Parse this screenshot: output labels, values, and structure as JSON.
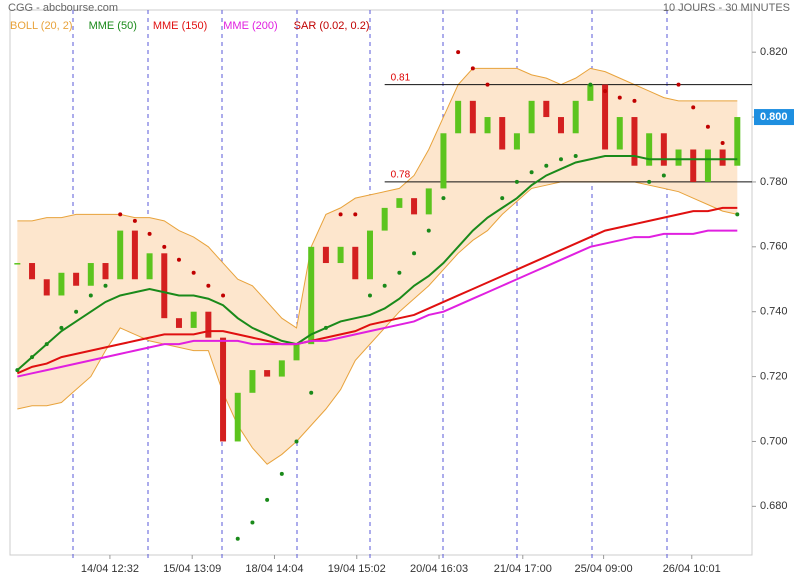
{
  "chart_data": {
    "type": "ohlc",
    "title": "CGG - abcbourse.com",
    "subtitle": "10 JOURS - 30 MINUTES",
    "x": [
      0,
      1,
      2,
      3,
      4,
      5,
      6,
      7,
      8,
      9,
      10,
      11,
      12,
      13,
      14,
      15,
      16,
      17,
      18,
      19,
      20,
      21,
      22,
      23,
      24,
      25,
      26,
      27,
      28,
      29,
      30,
      31,
      32,
      33,
      34,
      35,
      36,
      37,
      38,
      39,
      40,
      41,
      42,
      43,
      44,
      45,
      46,
      47,
      48,
      49
    ],
    "xlim": [
      -0.5,
      50
    ],
    "xticks": [
      {
        "value": 6.3,
        "label": "14/04 12:32"
      },
      {
        "value": 11.9,
        "label": "15/04 13:09"
      },
      {
        "value": 17.5,
        "label": "18/04 14:04"
      },
      {
        "value": 23.1,
        "label": "19/04 15:02"
      },
      {
        "value": 28.7,
        "label": "20/04 16:03"
      },
      {
        "value": 34.4,
        "label": "21/04 17:00"
      },
      {
        "value": 39.9,
        "label": "25/04 09:00"
      },
      {
        "value": 45.9,
        "label": "26/04 10:01"
      }
    ],
    "ylim": [
      0.665,
      0.833
    ],
    "yticks": [
      {
        "value": 0.68,
        "label": "0.680"
      },
      {
        "value": 0.7,
        "label": "0.700"
      },
      {
        "value": 0.72,
        "label": "0.720"
      },
      {
        "value": 0.74,
        "label": "0.740"
      },
      {
        "value": 0.76,
        "label": "0.760"
      },
      {
        "value": 0.78,
        "label": "0.780"
      },
      {
        "value": 0.8,
        "label": "0.800"
      },
      {
        "value": 0.82,
        "label": "0.820"
      }
    ],
    "up_color": "#5cc41e",
    "down_color": "#d42020",
    "close": [
      0.755,
      0.75,
      0.745,
      0.752,
      0.748,
      0.755,
      0.75,
      0.765,
      0.75,
      0.758,
      0.738,
      0.735,
      0.74,
      0.732,
      0.7,
      0.715,
      0.722,
      0.72,
      0.725,
      0.73,
      0.76,
      0.755,
      0.76,
      0.75,
      0.765,
      0.772,
      0.775,
      0.77,
      0.778,
      0.795,
      0.805,
      0.795,
      0.8,
      0.79,
      0.795,
      0.805,
      0.8,
      0.795,
      0.805,
      0.81,
      0.79,
      0.8,
      0.785,
      0.795,
      0.785,
      0.79,
      0.78,
      0.79,
      0.785,
      0.8
    ],
    "series": [
      {
        "name": "BOLL (20, 2)",
        "color": "#e8a33c",
        "kind": "band",
        "upper": [
          0.768,
          0.768,
          0.769,
          0.769,
          0.77,
          0.77,
          0.77,
          0.77,
          0.769,
          0.769,
          0.768,
          0.765,
          0.763,
          0.76,
          0.755,
          0.75,
          0.748,
          0.743,
          0.738,
          0.735,
          0.76,
          0.77,
          0.772,
          0.775,
          0.776,
          0.777,
          0.778,
          0.782,
          0.79,
          0.8,
          0.81,
          0.815,
          0.815,
          0.815,
          0.815,
          0.813,
          0.812,
          0.81,
          0.812,
          0.815,
          0.814,
          0.812,
          0.81,
          0.808,
          0.806,
          0.805,
          0.805,
          0.805,
          0.805,
          0.805
        ],
        "lower": [
          0.71,
          0.711,
          0.711,
          0.712,
          0.716,
          0.72,
          0.728,
          0.735,
          0.733,
          0.731,
          0.73,
          0.729,
          0.728,
          0.728,
          0.715,
          0.705,
          0.698,
          0.693,
          0.696,
          0.7,
          0.705,
          0.71,
          0.716,
          0.725,
          0.73,
          0.735,
          0.74,
          0.744,
          0.748,
          0.753,
          0.758,
          0.762,
          0.765,
          0.77,
          0.774,
          0.778,
          0.779,
          0.78,
          0.78,
          0.78,
          0.78,
          0.78,
          0.78,
          0.779,
          0.778,
          0.777,
          0.775,
          0.773,
          0.771,
          0.77
        ]
      },
      {
        "name": "MME (50)",
        "color": "#1a8a1a",
        "kind": "line",
        "values": [
          0.722,
          0.726,
          0.73,
          0.734,
          0.737,
          0.74,
          0.743,
          0.745,
          0.746,
          0.747,
          0.746,
          0.745,
          0.745,
          0.744,
          0.742,
          0.738,
          0.735,
          0.733,
          0.731,
          0.73,
          0.733,
          0.735,
          0.737,
          0.738,
          0.739,
          0.741,
          0.744,
          0.748,
          0.751,
          0.755,
          0.76,
          0.765,
          0.769,
          0.772,
          0.775,
          0.779,
          0.782,
          0.784,
          0.786,
          0.787,
          0.788,
          0.788,
          0.788,
          0.787,
          0.787,
          0.787,
          0.787,
          0.787,
          0.787,
          0.787
        ]
      },
      {
        "name": "MME (150)",
        "color": "#e01010",
        "kind": "line",
        "values": [
          0.721,
          0.723,
          0.724,
          0.726,
          0.727,
          0.728,
          0.729,
          0.73,
          0.731,
          0.732,
          0.733,
          0.733,
          0.733,
          0.734,
          0.734,
          0.733,
          0.732,
          0.731,
          0.73,
          0.73,
          0.731,
          0.732,
          0.733,
          0.734,
          0.736,
          0.737,
          0.738,
          0.739,
          0.741,
          0.743,
          0.745,
          0.747,
          0.749,
          0.751,
          0.753,
          0.755,
          0.757,
          0.759,
          0.761,
          0.763,
          0.765,
          0.766,
          0.767,
          0.768,
          0.769,
          0.77,
          0.771,
          0.771,
          0.772,
          0.772
        ]
      },
      {
        "name": "MME (200)",
        "color": "#e020e0",
        "kind": "line",
        "values": [
          0.72,
          0.721,
          0.722,
          0.723,
          0.724,
          0.725,
          0.726,
          0.727,
          0.728,
          0.729,
          0.73,
          0.73,
          0.731,
          0.731,
          0.731,
          0.731,
          0.73,
          0.73,
          0.73,
          0.73,
          0.731,
          0.731,
          0.732,
          0.733,
          0.734,
          0.735,
          0.736,
          0.737,
          0.739,
          0.74,
          0.742,
          0.744,
          0.746,
          0.748,
          0.75,
          0.752,
          0.754,
          0.756,
          0.758,
          0.76,
          0.761,
          0.762,
          0.763,
          0.763,
          0.764,
          0.764,
          0.764,
          0.765,
          0.765,
          0.765
        ]
      },
      {
        "name": "SAR (0.02, 0.2)",
        "color": "#c00000",
        "kind": "dots",
        "below_color": "#1a8a1a",
        "values": [
          0.722,
          0.726,
          0.73,
          0.735,
          0.74,
          0.745,
          0.748,
          0.77,
          0.768,
          0.764,
          0.76,
          0.756,
          0.752,
          0.748,
          0.745,
          0.67,
          0.675,
          0.682,
          0.69,
          0.7,
          0.715,
          0.735,
          0.77,
          0.77,
          0.745,
          0.748,
          0.752,
          0.758,
          0.765,
          0.775,
          0.82,
          0.815,
          0.81,
          0.775,
          0.78,
          0.783,
          0.785,
          0.787,
          0.788,
          0.81,
          0.808,
          0.806,
          0.805,
          0.78,
          0.782,
          0.81,
          0.803,
          0.797,
          0.792,
          0.77
        ]
      }
    ],
    "annotations": [
      {
        "value": 0.81,
        "label": "0.81"
      },
      {
        "value": 0.78,
        "label": "0.78"
      }
    ],
    "last_price": {
      "value": 0.8,
      "label": "0.800"
    },
    "last_price_color": "#1e8fe0"
  }
}
